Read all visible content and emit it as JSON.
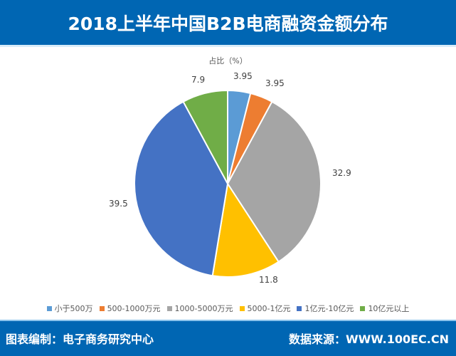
{
  "header": {
    "title": "2018上半年中国B2B电商融资金额分布"
  },
  "chart_data": {
    "type": "pie",
    "title": "2018上半年中国B2B电商融资金额分布",
    "subtitle": "占比（%）",
    "categories": [
      "小于500万",
      "500-1000万元",
      "1000-5000万元",
      "5000-1亿元",
      "1亿元-10亿元",
      "10亿元以上"
    ],
    "values": [
      3.95,
      3.95,
      32.9,
      11.8,
      39.5,
      7.9
    ],
    "colors": [
      "#5b9bd5",
      "#ed7d31",
      "#a5a5a5",
      "#ffc000",
      "#4472c4",
      "#70ad47"
    ],
    "value_labels": [
      "3.95",
      "3.95",
      "32.9",
      "11.8",
      "39.5",
      "7.9"
    ],
    "legend_position": "bottom"
  },
  "footer": {
    "left": "图表编制：电子商务研究中心",
    "right": "数据来源：WWW.100EC.CN"
  }
}
